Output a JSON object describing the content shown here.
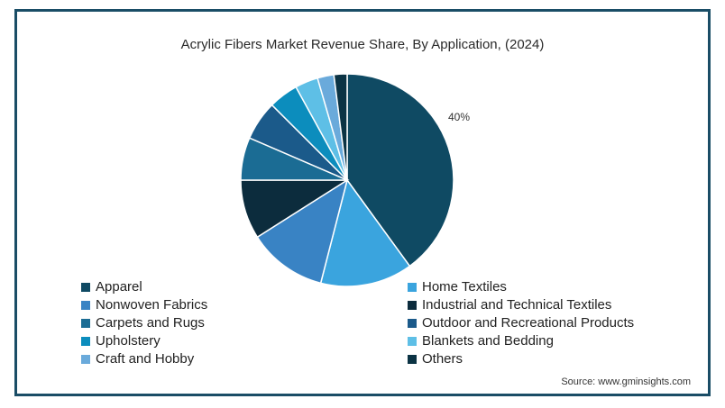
{
  "chart_data": {
    "type": "pie",
    "title": "Acrylic Fibers Market Revenue Share, By  Application, (2024)",
    "labels": [
      "Apparel",
      "Home Textiles",
      "Nonwoven Fabrics",
      "Industrial and Technical Textiles",
      "Carpets and Rugs",
      "Outdoor and Recreational Products",
      "Upholstery",
      "Blankets and Bedding",
      "Craft and Hobby",
      "Others"
    ],
    "values": [
      40,
      14,
      12,
      9,
      6.5,
      6,
      4.5,
      3.5,
      2.5,
      2
    ],
    "colors": [
      "#0f4a63",
      "#3aa4de",
      "#3983c4",
      "#0c2c3d",
      "#1b6c94",
      "#1b5a8a",
      "#0c8dbd",
      "#5ebfe6",
      "#6aaadb",
      "#0b3344"
    ],
    "data_label": {
      "text": "40%",
      "index": 0
    },
    "legend_placement": "bottom"
  },
  "source": "Source: www.gminsights.com"
}
